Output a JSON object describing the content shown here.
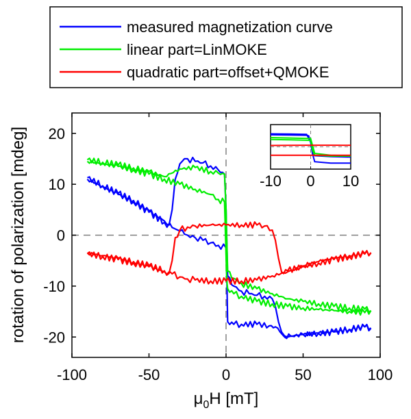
{
  "chart_data": {
    "type": "line",
    "xlabel": "μ0H [mT]",
    "ylabel": "rotation of polarization [mdeg]",
    "xlim": [
      -100,
      100
    ],
    "ylim": [
      -24,
      24
    ],
    "xticks": [
      -100,
      -50,
      0,
      50,
      100
    ],
    "yticks": [
      -20,
      -10,
      0,
      10,
      20
    ],
    "grid": false,
    "legend_position": "top",
    "reference_lines": {
      "x": 0,
      "y": 0,
      "style": "dashed",
      "color": "#808080"
    },
    "series": [
      {
        "name": "measured magnetization curve",
        "color": "#0000ff",
        "branches": [
          {
            "x": [
              -90,
              -80,
              -70,
              -60,
              -50,
              -40,
              -35,
              -30,
              -27,
              -25,
              -20,
              -15,
              -10,
              -5,
              0,
              0.5,
              1,
              5,
              10,
              20,
              28,
              32,
              35,
              38,
              42,
              50,
              60,
              70,
              80,
              90,
              94
            ],
            "y": [
              11,
              9.5,
              8,
              6.5,
              4.5,
              2.5,
              1.5,
              0.8,
              0.2,
              0,
              -0.5,
              -1,
              -1.5,
              -2,
              -2.5,
              -8,
              -17,
              -17.5,
              -17.5,
              -17.5,
              -17.8,
              -18,
              -19,
              -20,
              -19.8,
              -19.5,
              -19.2,
              -19,
              -18.5,
              -18,
              -18.3
            ]
          },
          {
            "x": [
              -90,
              -80,
              -70,
              -60,
              -50,
              -40,
              -37,
              -35,
              -33,
              -30,
              -27,
              -25,
              -20,
              -15,
              -10,
              -5,
              -1,
              0,
              1,
              5,
              10,
              15,
              20,
              25,
              30,
              32,
              34,
              36,
              38,
              40,
              50,
              60,
              70,
              80,
              90,
              94
            ],
            "y": [
              11.3,
              9.7,
              8.2,
              6.8,
              4.8,
              2.8,
              2,
              5,
              11,
              14,
              15,
              15,
              14.5,
              14.2,
              13.6,
              12.8,
              12,
              5,
              -8,
              -10,
              -11,
              -11.5,
              -11.8,
              -12,
              -12.5,
              -14,
              -17,
              -19,
              -19.8,
              -20,
              -19.5,
              -19.3,
              -19,
              -18.5,
              -18,
              -18.2
            ]
          }
        ]
      },
      {
        "name": "linear part=LinMOKE",
        "color": "#00ee00",
        "branches": [
          {
            "x": [
              -90,
              -80,
              -70,
              -60,
              -50,
              -40,
              -30,
              -20,
              -10,
              -5,
              -1,
              0,
              0.5,
              1,
              5,
              10,
              20,
              30,
              40,
              50,
              60,
              70,
              80,
              90,
              94
            ],
            "y": [
              14.5,
              14,
              13.5,
              12.8,
              12,
              11,
              10,
              9,
              8,
              7,
              6.5,
              -4,
              -9,
              -10.5,
              -11.5,
              -12,
              -13,
              -13.5,
              -14,
              -14.3,
              -14.6,
              -14.8,
              -15,
              -15.2,
              -14.8
            ]
          },
          {
            "x": [
              -90,
              -80,
              -70,
              -60,
              -50,
              -40,
              -30,
              -20,
              -10,
              -5,
              -1,
              0,
              1,
              5,
              10,
              20,
              30,
              40,
              50,
              60,
              70,
              80,
              90,
              94
            ],
            "y": [
              14.8,
              14.3,
              13.8,
              13.2,
              12.5,
              11.5,
              13,
              13.3,
              12.5,
              12.2,
              12,
              5,
              -7,
              -8.5,
              -9.5,
              -10.5,
              -11.5,
              -12.5,
              -13,
              -13.5,
              -14,
              -14.3,
              -14.5,
              -14.8
            ]
          }
        ]
      },
      {
        "name": "quadratic part=offset+QMOKE",
        "color": "#ff0000",
        "branches": [
          {
            "x": [
              -90,
              -80,
              -70,
              -60,
              -50,
              -40,
              -37,
              -35,
              -33,
              -30,
              -25,
              -20,
              -10,
              0,
              10,
              20,
              25,
              30,
              32,
              34,
              36,
              40,
              50,
              60,
              70,
              80,
              90,
              94
            ],
            "y": [
              -3.5,
              -4,
              -4.5,
              -5.2,
              -6,
              -7,
              -7.5,
              -5,
              -0.5,
              1,
              1.6,
              1.8,
              2,
              2,
              2,
              2,
              1.8,
              1,
              -1,
              -4.5,
              -7.2,
              -7,
              -6,
              -5.2,
              -4.5,
              -4,
              -3.6,
              -3.4
            ]
          },
          {
            "x": [
              -90,
              -80,
              -70,
              -60,
              -50,
              -40,
              -35,
              -30,
              -25,
              -20,
              -10,
              0,
              10,
              20,
              30,
              40,
              50,
              60,
              70,
              80,
              90,
              94
            ],
            "y": [
              -3.6,
              -4.2,
              -4.8,
              -5.5,
              -6.2,
              -7.2,
              -7.6,
              -8.2,
              -8.6,
              -8.8,
              -9,
              -9,
              -9,
              -8.8,
              -8,
              -7.2,
              -6.2,
              -5.5,
              -4.8,
              -4.2,
              -3.7,
              -3.5
            ]
          }
        ]
      }
    ],
    "inset": {
      "xlim": [
        -10,
        10
      ],
      "ylim": [
        -24,
        24
      ],
      "xticks": [
        -10,
        0,
        10
      ],
      "series": [
        {
          "color": "#0000ff",
          "branches": [
            {
              "x": [
                -10,
                -5,
                -1,
                -0.5,
                0,
                0.5,
                1,
                5,
                10
              ],
              "y": [
                13,
                12.8,
                12.5,
                12,
                5,
                -8,
                -16,
                -17.5,
                -17.5
              ]
            },
            {
              "x": [
                -10,
                -5,
                -1,
                0,
                0.5,
                1,
                5,
                10
              ],
              "y": [
                14,
                13.8,
                13.5,
                5,
                -8,
                -9.5,
                -10.5,
                -11
              ]
            }
          ]
        },
        {
          "color": "#00ee00",
          "branches": [
            {
              "x": [
                -10,
                -5,
                0,
                0.5,
                1,
                5,
                10
              ],
              "y": [
                8,
                7.5,
                7,
                -4,
                -9,
                -10,
                -10
              ]
            },
            {
              "x": [
                -10,
                -5,
                0,
                1,
                5,
                10
              ],
              "y": [
                10,
                9.5,
                9,
                -7,
                -9,
                -9.5
              ]
            }
          ]
        },
        {
          "color": "#ff0000",
          "branches": [
            {
              "x": [
                -10,
                -5,
                0,
                5,
                10
              ],
              "y": [
                1.5,
                1.6,
                1.8,
                1.8,
                1.7
              ]
            },
            {
              "x": [
                -10,
                -5,
                0,
                5,
                10
              ],
              "y": [
                -9,
                -9,
                -9,
                -9,
                -9
              ]
            }
          ]
        }
      ]
    }
  }
}
